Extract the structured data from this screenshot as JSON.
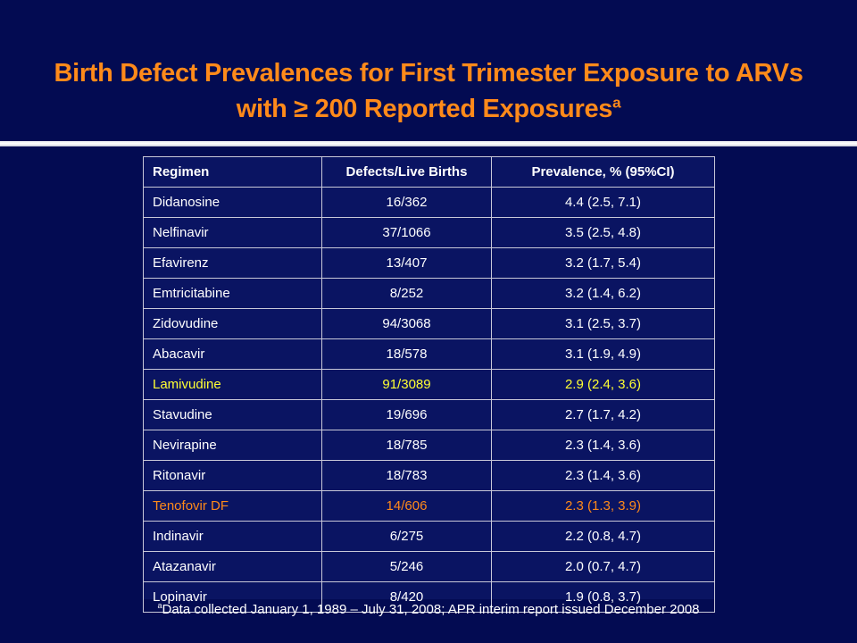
{
  "slide": {
    "title_line1": "Birth Defect Prevalences for First Trimester Exposure to ARVs",
    "title_line2": "with ≥ 200 Reported Exposures",
    "title_superscript": "a",
    "footnote_marker": "a",
    "footnote": "Data collected January 1, 1989 – July 31, 2008; APR interim report issued December 2008"
  },
  "colors": {
    "background": "#030b52",
    "title": "#ff8a1a",
    "highlight_yellow": "#ffff33",
    "highlight_orange": "#ff8a1a"
  },
  "table": {
    "headers": [
      "Regimen",
      "Defects/Live Births",
      "Prevalence, % (95%CI)"
    ],
    "rows": [
      {
        "regimen": "Didanosine",
        "defects": "16/362",
        "prevalence": "4.4 (2.5, 7.1)",
        "highlight": ""
      },
      {
        "regimen": "Nelfinavir",
        "defects": "37/1066",
        "prevalence": "3.5 (2.5, 4.8)",
        "highlight": ""
      },
      {
        "regimen": "Efavirenz",
        "defects": "13/407",
        "prevalence": "3.2 (1.7, 5.4)",
        "highlight": ""
      },
      {
        "regimen": "Emtricitabine",
        "defects": "8/252",
        "prevalence": "3.2 (1.4, 6.2)",
        "highlight": ""
      },
      {
        "regimen": "Zidovudine",
        "defects": "94/3068",
        "prevalence": "3.1 (2.5, 3.7)",
        "highlight": ""
      },
      {
        "regimen": "Abacavir",
        "defects": "18/578",
        "prevalence": "3.1 (1.9, 4.9)",
        "highlight": ""
      },
      {
        "regimen": "Lamivudine",
        "defects": "91/3089",
        "prevalence": "2.9 (2.4, 3.6)",
        "highlight": "yellow"
      },
      {
        "regimen": "Stavudine",
        "defects": "19/696",
        "prevalence": "2.7 (1.7, 4.2)",
        "highlight": ""
      },
      {
        "regimen": "Nevirapine",
        "defects": "18/785",
        "prevalence": "2.3 (1.4, 3.6)",
        "highlight": ""
      },
      {
        "regimen": "Ritonavir",
        "defects": "18/783",
        "prevalence": "2.3 (1.4, 3.6)",
        "highlight": ""
      },
      {
        "regimen": "Tenofovir DF",
        "defects": "14/606",
        "prevalence": "2.3 (1.3, 3.9)",
        "highlight": "orange"
      },
      {
        "regimen": "Indinavir",
        "defects": "6/275",
        "prevalence": "2.2 (0.8, 4.7)",
        "highlight": ""
      },
      {
        "regimen": "Atazanavir",
        "defects": "5/246",
        "prevalence": "2.0 (0.7, 4.7)",
        "highlight": ""
      },
      {
        "regimen": "Lopinavir",
        "defects": "8/420",
        "prevalence": "1.9 (0.8, 3.7)",
        "highlight": ""
      }
    ]
  }
}
